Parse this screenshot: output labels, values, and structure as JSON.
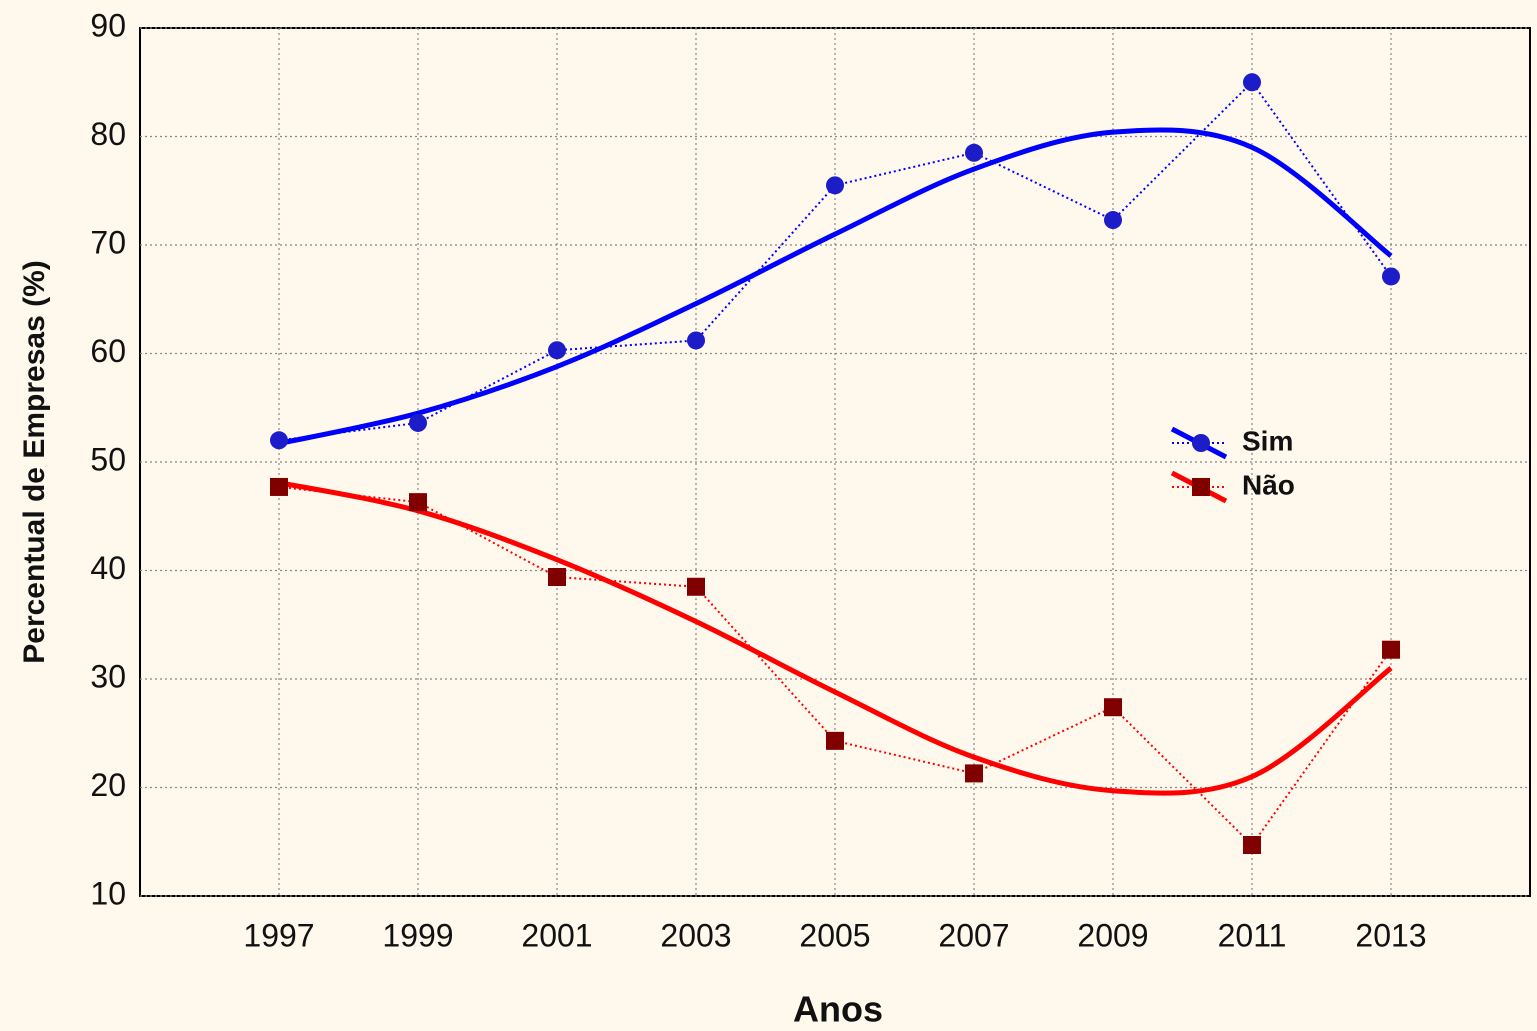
{
  "chart_data": {
    "type": "line",
    "xlabel": "Anos",
    "ylabel": "Percentual de Empresas (%)",
    "x": [
      1997,
      1999,
      2001,
      2003,
      2005,
      2007,
      2009,
      2011,
      2013
    ],
    "series": [
      {
        "name": "Sim",
        "color": "#1c1cc8",
        "trend_color": "#0000ff",
        "marker": "circle",
        "values": [
          52,
          53.6,
          60.3,
          61.2,
          75.5,
          78.5,
          72.3,
          85,
          67.1
        ],
        "trend": [
          51.7,
          54.5,
          58.8,
          64.6,
          71.0,
          77.0,
          80.4,
          79.0,
          69.0
        ]
      },
      {
        "name": "Não",
        "color": "#800000",
        "trend_color": "#ff0000",
        "marker": "square",
        "values": [
          47.7,
          46.3,
          39.4,
          38.5,
          24.3,
          21.3,
          27.4,
          14.7,
          32.7
        ],
        "trend": [
          48.1,
          45.5,
          41.0,
          35.3,
          28.8,
          22.8,
          19.7,
          21.0,
          31.0
        ]
      }
    ],
    "xlim": [
      1995,
      2015
    ],
    "xticks": [
      1997,
      1999,
      2001,
      2003,
      2005,
      2007,
      2009,
      2011,
      2013
    ],
    "ylim": [
      10,
      90
    ],
    "yticks": [
      10,
      20,
      30,
      40,
      50,
      60,
      70,
      80,
      90
    ],
    "grid": true,
    "legend": "right"
  }
}
